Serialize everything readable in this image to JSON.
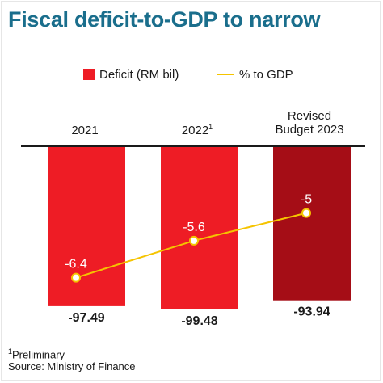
{
  "title": "Fiscal deficit-to-GDP to narrow",
  "legend": {
    "bar_label": "Deficit (RM bil)",
    "line_label": "% to GDP"
  },
  "categories": {
    "c0": "2021",
    "c1_base": "2022",
    "c1_sup": "1",
    "c2_line1": "Revised",
    "c2_line2": "Budget 2023"
  },
  "footnote": {
    "sup": "1",
    "note": "Preliminary",
    "source": "Source: Ministry of Finance"
  },
  "colors": {
    "title": "#1a6e8c",
    "bar": "#ee1c25",
    "bar_highlight": "#a50d16",
    "line": "#f5c400",
    "axis": "#1a1a1a"
  },
  "chart_data": {
    "type": "bar",
    "categories": [
      "2021",
      "2022¹",
      "Revised Budget 2023"
    ],
    "series": [
      {
        "name": "Deficit (RM bil)",
        "type": "bar",
        "values": [
          -97.49,
          -99.48,
          -93.94
        ]
      },
      {
        "name": "% to GDP",
        "type": "line",
        "values": [
          -6.4,
          -5.6,
          -5
        ]
      }
    ],
    "title": "Fiscal deficit-to-GDP to narrow",
    "xlabel": "",
    "ylabel": "",
    "grid": false,
    "legend_position": "top"
  }
}
